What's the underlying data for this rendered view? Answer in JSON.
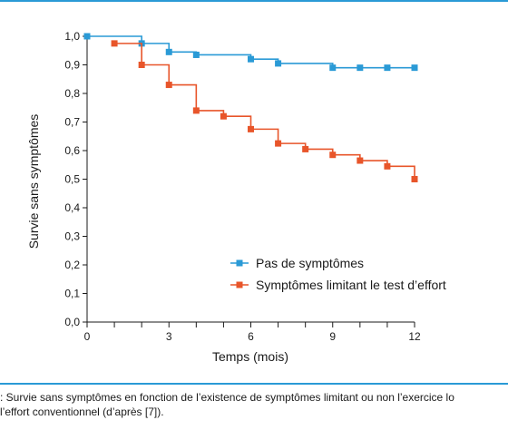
{
  "colors": {
    "series_no_symptoms": "#2a9ad6",
    "series_limiting": "#e8552a",
    "axis": "#1a1a1a",
    "rule": "#2a9ad6"
  },
  "chart_data": {
    "type": "line",
    "step": true,
    "xlabel": "Temps (mois)",
    "ylabel": "Survie sans symptômes",
    "xlim": [
      0,
      12
    ],
    "ylim": [
      0,
      1
    ],
    "x_ticks": [
      0,
      3,
      6,
      9,
      12
    ],
    "x_tick_labels": [
      "0",
      "3",
      "6",
      "9",
      "12"
    ],
    "x_minor_ticks": [
      1,
      2,
      4,
      5,
      7,
      8,
      10,
      11
    ],
    "y_ticks": [
      0,
      0.1,
      0.2,
      0.3,
      0.4,
      0.5,
      0.6,
      0.7,
      0.8,
      0.9,
      1.0
    ],
    "y_tick_labels": [
      "0,0",
      "0,1",
      "0,2",
      "0,3",
      "0,4",
      "0,5",
      "0,6",
      "0,7",
      "0,8",
      "0,9",
      "1,0"
    ],
    "grid": false,
    "legend_position": "center-right",
    "series": [
      {
        "name": "Pas de symptômes",
        "x": [
          0,
          2,
          3,
          4,
          6,
          7,
          9,
          10,
          11,
          12
        ],
        "y": [
          1.0,
          0.975,
          0.945,
          0.935,
          0.92,
          0.905,
          0.89,
          0.89,
          0.89,
          0.89
        ]
      },
      {
        "name": "Symptômes limitant le test d’effort",
        "x": [
          1,
          2,
          3,
          4,
          5,
          6,
          7,
          8,
          9,
          10,
          11,
          12
        ],
        "y": [
          0.975,
          0.9,
          0.83,
          0.74,
          0.72,
          0.675,
          0.625,
          0.605,
          0.585,
          0.565,
          0.545,
          0.5
        ]
      }
    ]
  },
  "caption": {
    "line1": ": Survie sans symptômes en fonction de l’existence de symptômes limitant ou non l’exercice lo",
    "line2": "l’effort conventionnel (d’après [7])."
  }
}
